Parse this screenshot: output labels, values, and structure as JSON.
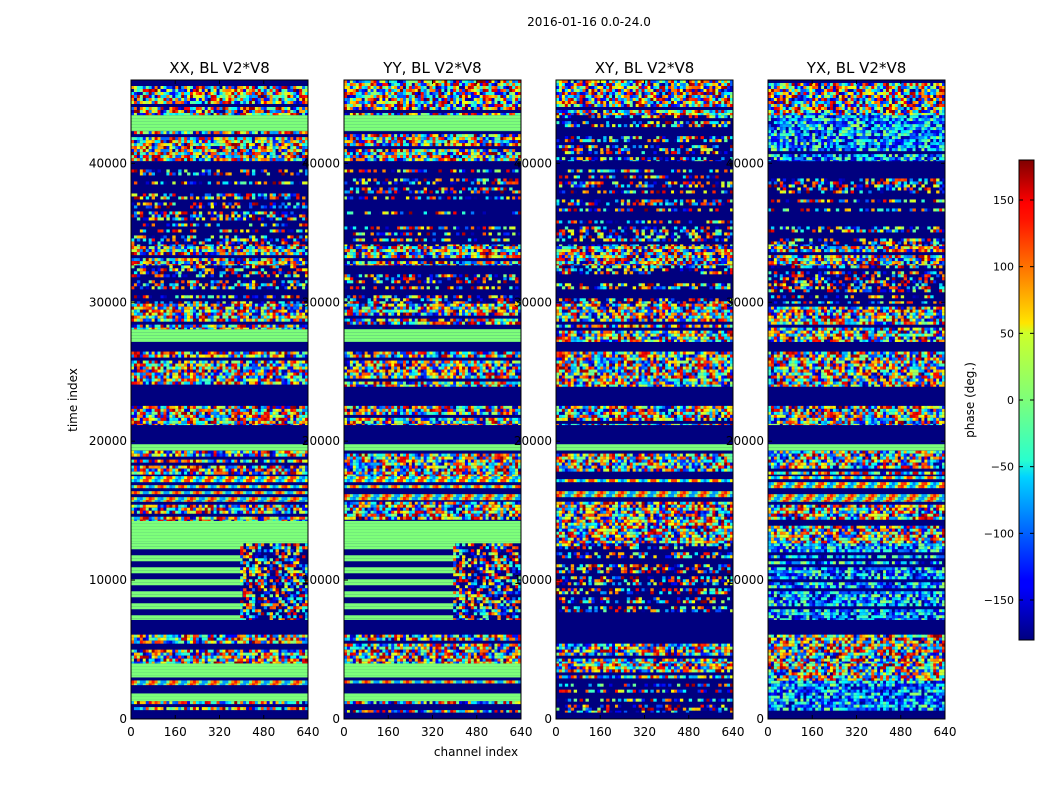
{
  "figure": {
    "suptitle": "2016-01-16 0.0-24.0"
  },
  "chart_data": {
    "type": "heatmap",
    "panels": [
      {
        "title": "XX, BL V2*V8",
        "blocks": [
          [
            0.0,
            0.01,
            "dark"
          ],
          [
            0.01,
            0.028,
            "noise"
          ],
          [
            0.028,
            0.04,
            "green"
          ],
          [
            0.04,
            0.053,
            "dark"
          ],
          [
            0.053,
            0.065,
            "stripes"
          ],
          [
            0.065,
            0.087,
            "green"
          ],
          [
            0.087,
            0.132,
            "noise"
          ],
          [
            0.132,
            0.155,
            "dark"
          ],
          [
            0.155,
            0.275,
            "greenbands"
          ],
          [
            0.275,
            0.31,
            "green"
          ],
          [
            0.31,
            0.34,
            "noise"
          ],
          [
            0.34,
            0.38,
            "stripes"
          ],
          [
            0.38,
            0.42,
            "noise"
          ],
          [
            0.42,
            0.43,
            "green"
          ],
          [
            0.43,
            0.46,
            "dark"
          ],
          [
            0.46,
            0.49,
            "noise"
          ],
          [
            0.49,
            0.52,
            "dark"
          ],
          [
            0.52,
            0.575,
            "noise"
          ],
          [
            0.575,
            0.59,
            "dark"
          ],
          [
            0.59,
            0.61,
            "green"
          ],
          [
            0.61,
            0.65,
            "noise"
          ],
          [
            0.65,
            0.71,
            "darknoise"
          ],
          [
            0.71,
            0.74,
            "noise"
          ],
          [
            0.74,
            0.86,
            "darknoise"
          ],
          [
            0.86,
            0.873,
            "dark"
          ],
          [
            0.873,
            0.92,
            "noise"
          ],
          [
            0.92,
            0.945,
            "green"
          ],
          [
            0.945,
            1.0,
            "noise"
          ]
        ],
        "right_overlay": [
          0.155,
          0.275
        ]
      },
      {
        "title": "YY, BL V2*V8",
        "blocks": [
          [
            0.0,
            0.01,
            "dark"
          ],
          [
            0.01,
            0.028,
            "noise"
          ],
          [
            0.028,
            0.04,
            "green"
          ],
          [
            0.04,
            0.053,
            "dark"
          ],
          [
            0.053,
            0.065,
            "stripes"
          ],
          [
            0.065,
            0.087,
            "green"
          ],
          [
            0.087,
            0.132,
            "noise"
          ],
          [
            0.132,
            0.155,
            "dark"
          ],
          [
            0.155,
            0.275,
            "greenbands"
          ],
          [
            0.275,
            0.31,
            "green"
          ],
          [
            0.31,
            0.34,
            "noise"
          ],
          [
            0.34,
            0.38,
            "stripes"
          ],
          [
            0.38,
            0.42,
            "noise"
          ],
          [
            0.42,
            0.43,
            "green"
          ],
          [
            0.43,
            0.46,
            "dark"
          ],
          [
            0.46,
            0.49,
            "noise"
          ],
          [
            0.49,
            0.52,
            "dark"
          ],
          [
            0.52,
            0.575,
            "noise"
          ],
          [
            0.575,
            0.59,
            "dark"
          ],
          [
            0.59,
            0.61,
            "green"
          ],
          [
            0.61,
            0.65,
            "noise"
          ],
          [
            0.65,
            0.71,
            "darknoise"
          ],
          [
            0.71,
            0.74,
            "noise"
          ],
          [
            0.74,
            0.86,
            "darknoise"
          ],
          [
            0.86,
            0.873,
            "dark"
          ],
          [
            0.873,
            0.92,
            "noise"
          ],
          [
            0.92,
            0.945,
            "green"
          ],
          [
            0.945,
            1.0,
            "noise"
          ]
        ],
        "right_overlay": [
          0.155,
          0.275
        ]
      },
      {
        "title": "XY, BL V2*V8",
        "blocks": [
          [
            0.0,
            0.01,
            "dark"
          ],
          [
            0.01,
            0.06,
            "darknoise"
          ],
          [
            0.06,
            0.087,
            "noise"
          ],
          [
            0.087,
            0.132,
            "noise"
          ],
          [
            0.132,
            0.155,
            "dark"
          ],
          [
            0.155,
            0.275,
            "darknoise"
          ],
          [
            0.275,
            0.34,
            "noise"
          ],
          [
            0.34,
            0.38,
            "stripes"
          ],
          [
            0.38,
            0.42,
            "noise"
          ],
          [
            0.42,
            0.43,
            "green"
          ],
          [
            0.43,
            0.46,
            "dark"
          ],
          [
            0.46,
            0.49,
            "noise"
          ],
          [
            0.49,
            0.52,
            "dark"
          ],
          [
            0.52,
            0.575,
            "noise"
          ],
          [
            0.575,
            0.59,
            "dark"
          ],
          [
            0.59,
            0.65,
            "noise"
          ],
          [
            0.65,
            0.71,
            "darknoise"
          ],
          [
            0.71,
            0.74,
            "noise"
          ],
          [
            0.74,
            0.86,
            "darknoise"
          ],
          [
            0.86,
            0.873,
            "dark"
          ],
          [
            0.873,
            0.945,
            "darknoise"
          ],
          [
            0.945,
            1.0,
            "noise"
          ]
        ],
        "right_overlay": [
          0.155,
          0.275
        ]
      },
      {
        "title": "YX, BL V2*V8",
        "blocks": [
          [
            0.0,
            0.01,
            "dark"
          ],
          [
            0.01,
            0.06,
            "bluenoise"
          ],
          [
            0.06,
            0.087,
            "noise"
          ],
          [
            0.087,
            0.132,
            "noise"
          ],
          [
            0.132,
            0.155,
            "dark"
          ],
          [
            0.155,
            0.275,
            "bluenoise"
          ],
          [
            0.275,
            0.34,
            "noise"
          ],
          [
            0.34,
            0.38,
            "stripes"
          ],
          [
            0.38,
            0.42,
            "noise"
          ],
          [
            0.42,
            0.43,
            "green"
          ],
          [
            0.43,
            0.46,
            "dark"
          ],
          [
            0.46,
            0.49,
            "noise"
          ],
          [
            0.49,
            0.52,
            "dark"
          ],
          [
            0.52,
            0.575,
            "noise"
          ],
          [
            0.575,
            0.59,
            "dark"
          ],
          [
            0.59,
            0.65,
            "noise"
          ],
          [
            0.65,
            0.71,
            "darknoise"
          ],
          [
            0.71,
            0.74,
            "noise"
          ],
          [
            0.74,
            0.86,
            "darknoise"
          ],
          [
            0.86,
            0.873,
            "dark"
          ],
          [
            0.873,
            0.945,
            "bluenoise"
          ],
          [
            0.945,
            1.0,
            "noise"
          ]
        ],
        "right_overlay": [
          0.155,
          0.275
        ]
      }
    ],
    "xlabel": "channel index",
    "ylabel": "time index",
    "xlim": [
      0,
      640
    ],
    "xticks": [
      "0",
      "160",
      "320",
      "480",
      "640"
    ],
    "ylim": [
      0,
      46000
    ],
    "yticks": [
      "0",
      "10000",
      "20000",
      "30000",
      "40000"
    ],
    "colorbar": {
      "label": "phase (deg.)",
      "range": [
        -180,
        180
      ],
      "ticks": [
        "150",
        "100",
        "50",
        "0",
        "−50",
        "−100",
        "−150"
      ],
      "tick_values": [
        150,
        100,
        50,
        0,
        -50,
        -100,
        -150
      ],
      "colormap": "jet"
    }
  }
}
